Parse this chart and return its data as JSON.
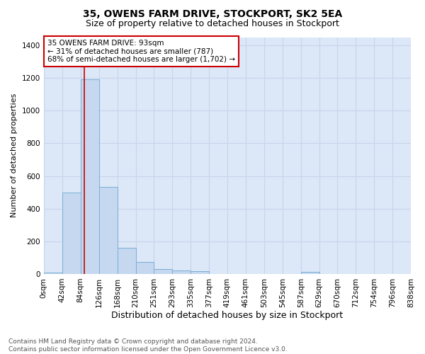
{
  "title": "35, OWENS FARM DRIVE, STOCKPORT, SK2 5EA",
  "subtitle": "Size of property relative to detached houses in Stockport",
  "xlabel": "Distribution of detached houses by size in Stockport",
  "ylabel": "Number of detached properties",
  "footer_line1": "Contains HM Land Registry data © Crown copyright and database right 2024.",
  "footer_line2": "Contains public sector information licensed under the Open Government Licence v3.0.",
  "annotation_line1": "35 OWENS FARM DRIVE: 93sqm",
  "annotation_line2": "← 31% of detached houses are smaller (787)",
  "annotation_line3": "68% of semi-detached houses are larger (1,702) →",
  "property_size": 93,
  "bin_edges": [
    0,
    42,
    84,
    126,
    168,
    210,
    251,
    293,
    335,
    377,
    419,
    461,
    503,
    545,
    587,
    629,
    670,
    712,
    754,
    796,
    838
  ],
  "bar_heights": [
    8,
    500,
    1190,
    535,
    160,
    75,
    30,
    22,
    15,
    0,
    0,
    0,
    0,
    0,
    12,
    0,
    0,
    0,
    0,
    0
  ],
  "bar_color": "#c5d8f0",
  "bar_edge_color": "#7aaed4",
  "vline_color": "#cc0000",
  "vline_x": 93,
  "annotation_box_color": "#cc0000",
  "background_color": "#ffffff",
  "grid_color": "#c8d4e8",
  "ax_bg_color": "#dce8f8",
  "ylim": [
    0,
    1450
  ],
  "yticks": [
    0,
    200,
    400,
    600,
    800,
    1000,
    1200,
    1400
  ],
  "xtick_labels": [
    "0sqm",
    "42sqm",
    "84sqm",
    "126sqm",
    "168sqm",
    "210sqm",
    "251sqm",
    "293sqm",
    "335sqm",
    "377sqm",
    "419sqm",
    "461sqm",
    "503sqm",
    "545sqm",
    "587sqm",
    "629sqm",
    "670sqm",
    "712sqm",
    "754sqm",
    "796sqm",
    "838sqm"
  ],
  "title_fontsize": 10,
  "subtitle_fontsize": 9,
  "ylabel_fontsize": 8,
  "xlabel_fontsize": 9,
  "tick_fontsize": 7.5,
  "annotation_fontsize": 7.5,
  "footer_fontsize": 6.5
}
